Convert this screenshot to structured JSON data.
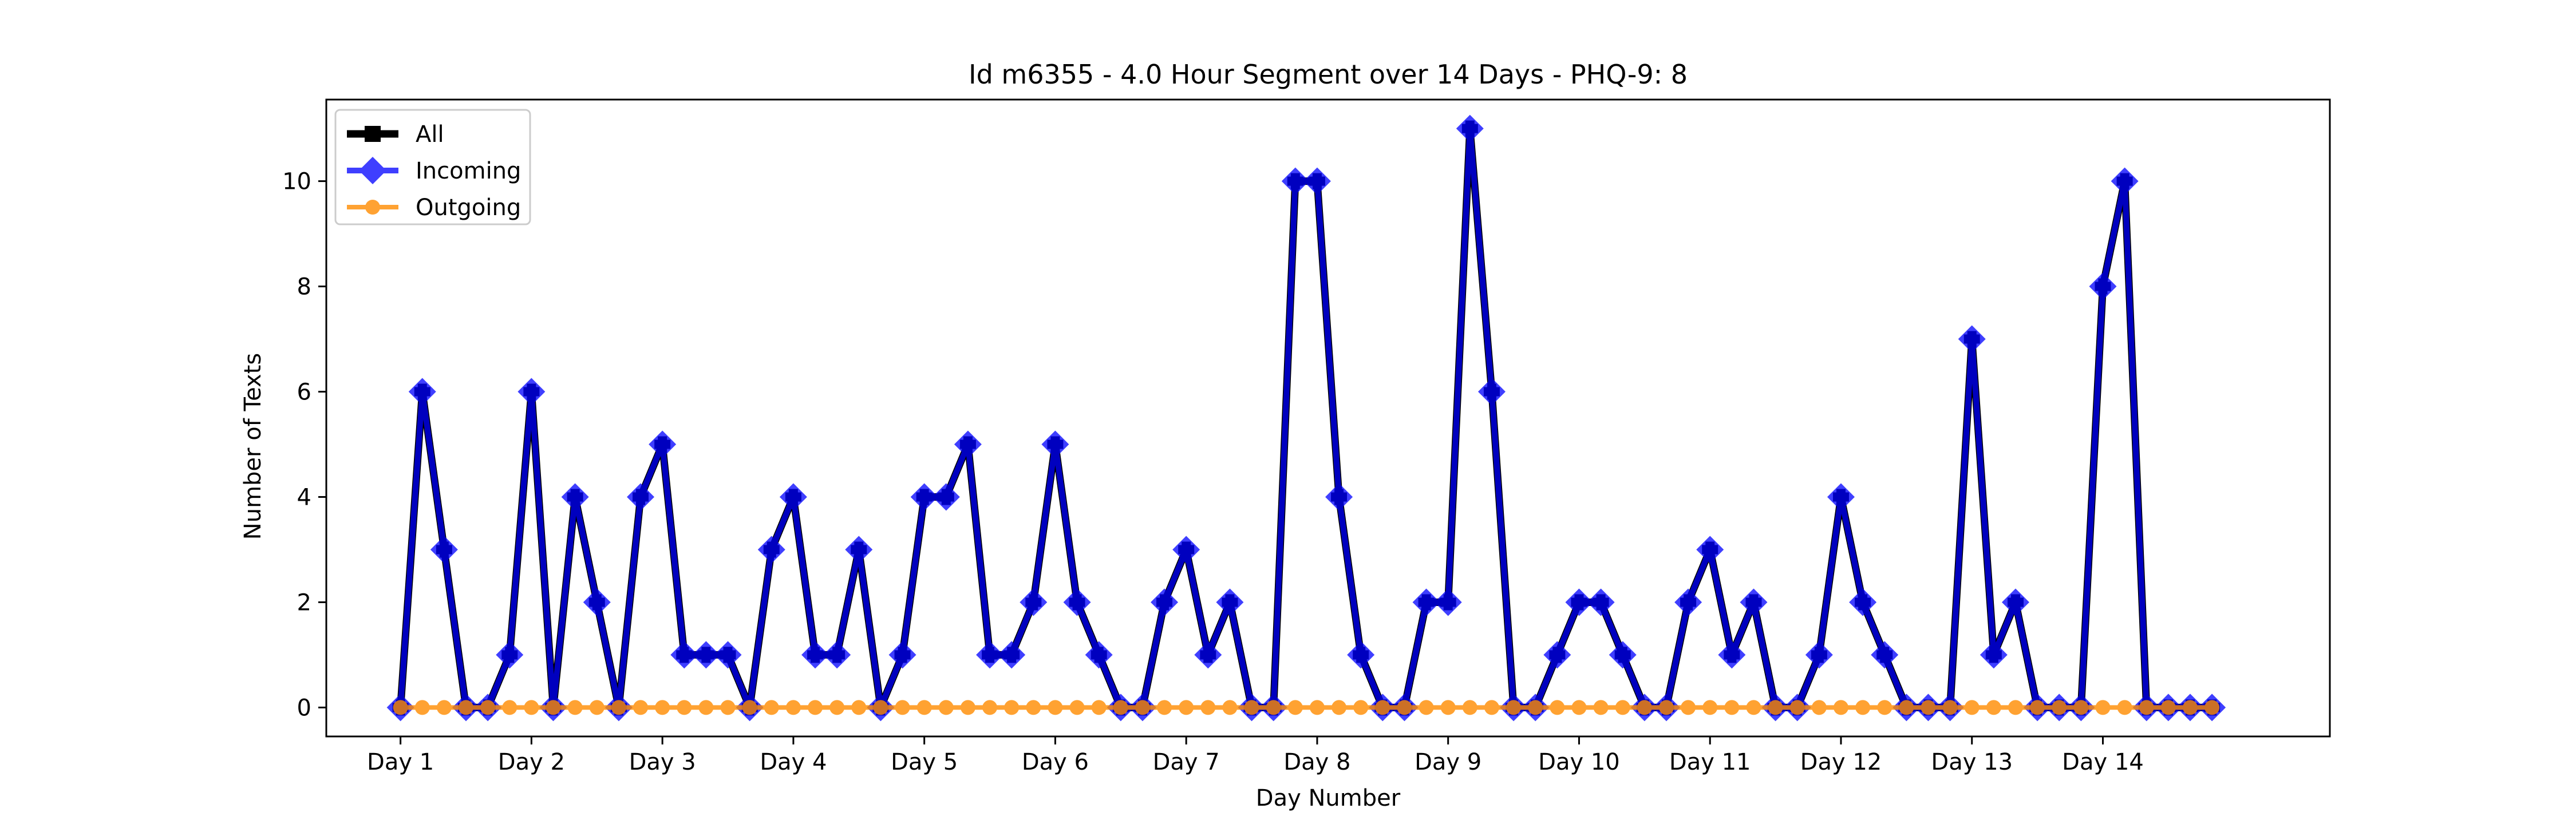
{
  "chart_data": {
    "type": "line",
    "title": "Id m6355 - 4.0 Hour Segment over 14 Days - PHQ-9: 8",
    "xlabel": "Day Number",
    "ylabel": "Number of Texts",
    "x_ticks": [
      "Day 1",
      "Day 2",
      "Day 3",
      "Day 4",
      "Day 5",
      "Day 6",
      "Day 7",
      "Day 8",
      "Day 9",
      "Day 10",
      "Day 11",
      "Day 12",
      "Day 13",
      "Day 14"
    ],
    "y_ticks": [
      0,
      2,
      4,
      6,
      8,
      10
    ],
    "ylim": [
      -0.55,
      11.55
    ],
    "xlim": [
      -3.4,
      88.4
    ],
    "segments_per_day": 6,
    "grid": false,
    "legend_position": "top-left",
    "series": [
      {
        "name": "All",
        "color": "#000000",
        "marker": "square",
        "values": [
          0,
          6,
          3,
          0,
          0,
          1,
          6,
          0,
          4,
          2,
          0,
          4,
          5,
          1,
          1,
          1,
          0,
          3,
          4,
          1,
          1,
          3,
          0,
          1,
          4,
          4,
          5,
          1,
          1,
          2,
          5,
          2,
          1,
          0,
          0,
          2,
          3,
          1,
          2,
          0,
          0,
          10,
          10,
          4,
          1,
          0,
          0,
          2,
          2,
          11,
          6,
          0,
          0,
          1,
          2,
          2,
          1,
          0,
          0,
          2,
          3,
          1,
          2,
          0,
          0,
          1,
          4,
          2,
          1,
          0,
          0,
          0,
          7,
          1,
          2,
          0,
          0,
          0,
          8,
          10,
          0,
          0,
          0,
          0
        ]
      },
      {
        "name": "Incoming",
        "color": "#0000ff",
        "marker": "diamond",
        "values": [
          0,
          6,
          3,
          0,
          0,
          1,
          6,
          0,
          4,
          2,
          0,
          4,
          5,
          1,
          1,
          1,
          0,
          3,
          4,
          1,
          1,
          3,
          0,
          1,
          4,
          4,
          5,
          1,
          1,
          2,
          5,
          2,
          1,
          0,
          0,
          2,
          3,
          1,
          2,
          0,
          0,
          10,
          10,
          4,
          1,
          0,
          0,
          2,
          2,
          11,
          6,
          0,
          0,
          1,
          2,
          2,
          1,
          0,
          0,
          2,
          3,
          1,
          2,
          0,
          0,
          1,
          4,
          2,
          1,
          0,
          0,
          0,
          7,
          1,
          2,
          0,
          0,
          0,
          8,
          10,
          0,
          0,
          0,
          0
        ]
      },
      {
        "name": "Outgoing",
        "color": "#ff8c00",
        "marker": "circle",
        "values": [
          0,
          0,
          0,
          0,
          0,
          0,
          0,
          0,
          0,
          0,
          0,
          0,
          0,
          0,
          0,
          0,
          0,
          0,
          0,
          0,
          0,
          0,
          0,
          0,
          0,
          0,
          0,
          0,
          0,
          0,
          0,
          0,
          0,
          0,
          0,
          0,
          0,
          0,
          0,
          0,
          0,
          0,
          0,
          0,
          0,
          0,
          0,
          0,
          0,
          0,
          0,
          0,
          0,
          0,
          0,
          0,
          0,
          0,
          0,
          0,
          0,
          0,
          0,
          0,
          0,
          0,
          0,
          0,
          0,
          0,
          0,
          0,
          0,
          0,
          0,
          0,
          0,
          0,
          0,
          0,
          0,
          0,
          0,
          0
        ]
      }
    ]
  }
}
